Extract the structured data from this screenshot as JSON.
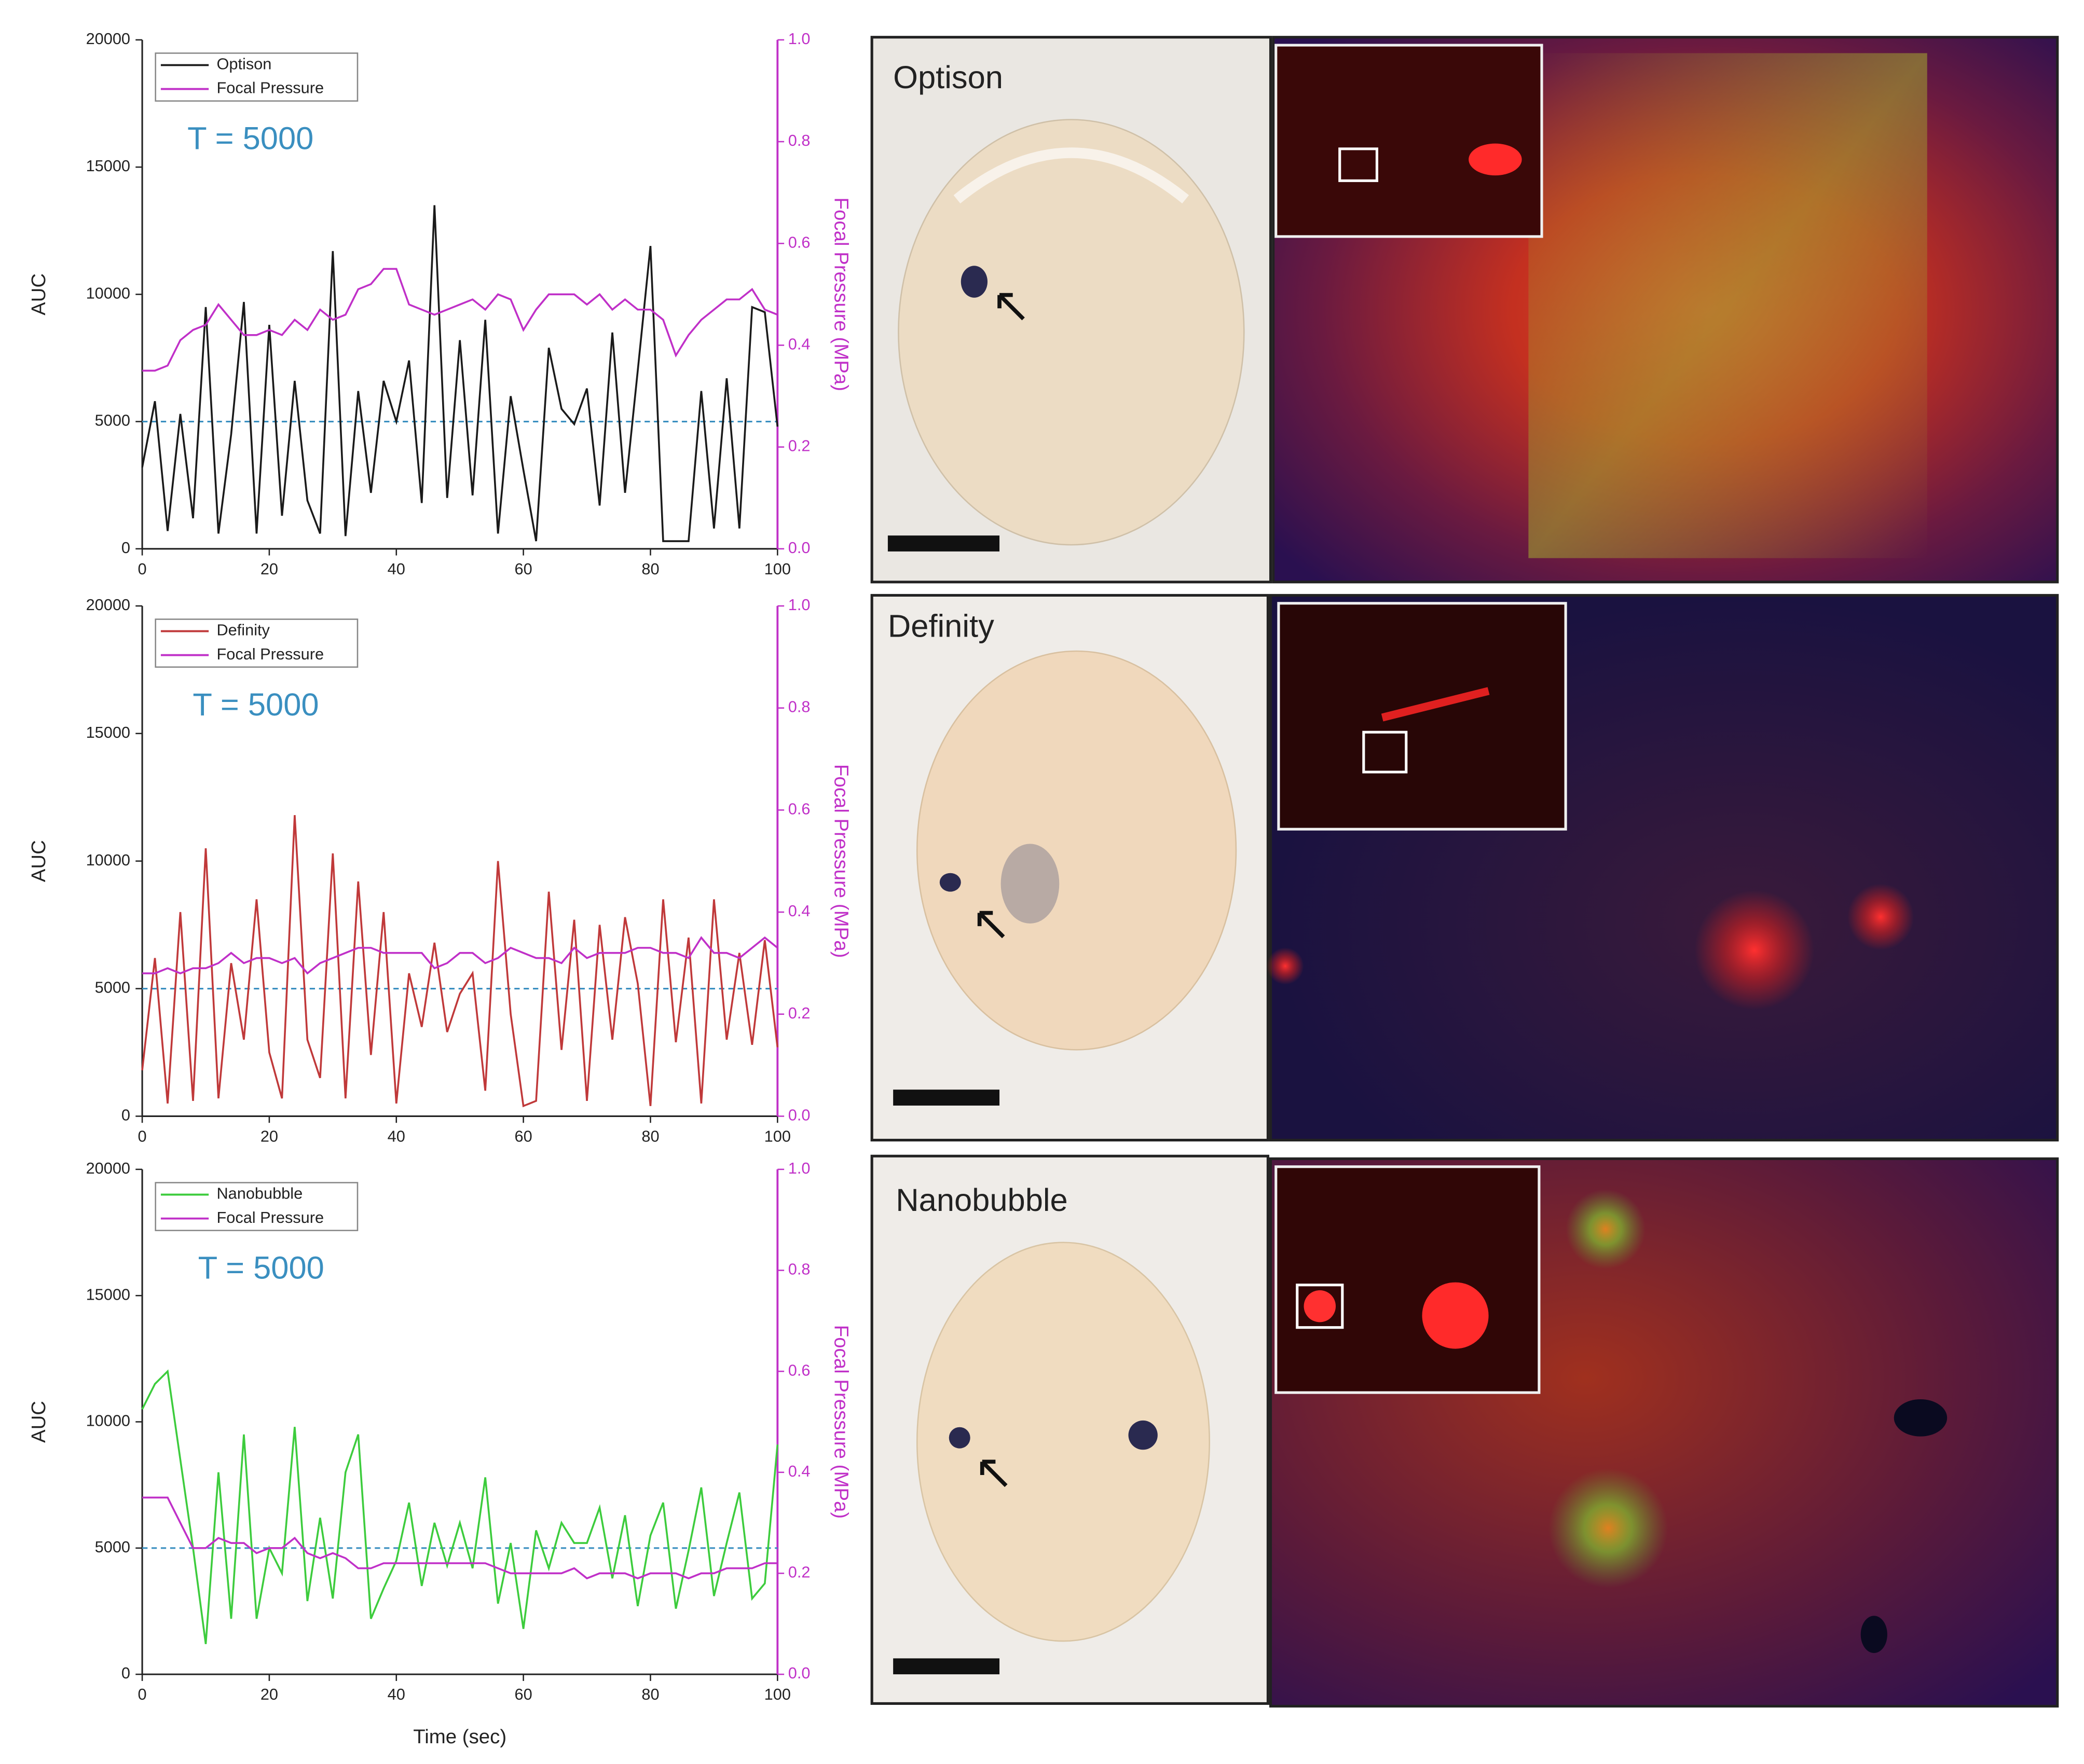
{
  "chart_data": [
    {
      "type": "line",
      "annotation": "T = 5000",
      "threshold_line": 5000,
      "threshold_color": "#3a8fc0",
      "ylabel": "AUC",
      "y2label": "Focal Pressure (MPa)",
      "x": [
        0,
        2,
        4,
        6,
        8,
        10,
        12,
        14,
        16,
        18,
        20,
        22,
        24,
        26,
        28,
        30,
        32,
        34,
        36,
        38,
        40,
        42,
        44,
        46,
        48,
        50,
        52,
        54,
        56,
        58,
        60,
        62,
        64,
        66,
        68,
        70,
        72,
        74,
        76,
        78,
        80,
        82,
        84,
        86,
        88,
        90,
        92,
        94,
        96,
        98,
        100
      ],
      "xlim": [
        0,
        100
      ],
      "xticks": [
        0,
        20,
        40,
        60,
        80,
        100
      ],
      "ylim": [
        0,
        20000
      ],
      "yticks": [
        0,
        5000,
        10000,
        15000,
        20000
      ],
      "y2lim": [
        0,
        1
      ],
      "y2ticks": [
        {
          "value": 0,
          "label": "0.0"
        },
        {
          "value": 0.2,
          "label": "0.2"
        },
        {
          "value": 0.4,
          "label": "0.4"
        },
        {
          "value": 0.6,
          "label": "0.6"
        },
        {
          "value": 0.8,
          "label": "0.8"
        },
        {
          "value": 1,
          "label": "1.0"
        }
      ],
      "series": [
        {
          "name": "Optison",
          "color": "#1a1a1a",
          "values": [
            3200,
            5800,
            700,
            5300,
            1200,
            9500,
            600,
            4500,
            9700,
            600,
            8800,
            1300,
            6600,
            1900,
            600,
            11700,
            500,
            6200,
            2200,
            6600,
            5000,
            7400,
            1800,
            13500,
            2000,
            8200,
            2100,
            9000,
            600,
            6000,
            3100,
            300,
            7900,
            5500,
            4900,
            6300,
            1700,
            8500,
            2200,
            7000,
            11900,
            300,
            300,
            300,
            6200,
            800,
            6700,
            800,
            9500,
            9300,
            4800
          ]
        },
        {
          "name": "Focal Pressure",
          "color": "#c030c8",
          "axis": "y2",
          "values": [
            0.35,
            0.35,
            0.36,
            0.41,
            0.43,
            0.44,
            0.48,
            0.45,
            0.42,
            0.42,
            0.43,
            0.42,
            0.45,
            0.43,
            0.47,
            0.45,
            0.46,
            0.51,
            0.52,
            0.55,
            0.55,
            0.48,
            0.47,
            0.46,
            0.47,
            0.48,
            0.49,
            0.47,
            0.5,
            0.49,
            0.43,
            0.47,
            0.5,
            0.5,
            0.5,
            0.48,
            0.5,
            0.47,
            0.49,
            0.47,
            0.47,
            0.45,
            0.38,
            0.42,
            0.45,
            0.47,
            0.49,
            0.49,
            0.51,
            0.47,
            0.46
          ]
        }
      ]
    },
    {
      "type": "line",
      "annotation": "T = 5000",
      "threshold_line": 5000,
      "threshold_color": "#3a8fc0",
      "ylabel": "AUC",
      "y2label": "Focal Pressure (MPa)",
      "x": [
        0,
        2,
        4,
        6,
        8,
        10,
        12,
        14,
        16,
        18,
        20,
        22,
        24,
        26,
        28,
        30,
        32,
        34,
        36,
        38,
        40,
        42,
        44,
        46,
        48,
        50,
        52,
        54,
        56,
        58,
        60,
        62,
        64,
        66,
        68,
        70,
        72,
        74,
        76,
        78,
        80,
        82,
        84,
        86,
        88,
        90,
        92,
        94,
        96,
        98,
        100
      ],
      "xlim": [
        0,
        100
      ],
      "xticks": [
        0,
        20,
        40,
        60,
        80,
        100
      ],
      "ylim": [
        0,
        20000
      ],
      "yticks": [
        0,
        5000,
        10000,
        15000,
        20000
      ],
      "y2lim": [
        0,
        1
      ],
      "y2ticks": [
        {
          "value": 0,
          "label": "0.0"
        },
        {
          "value": 0.2,
          "label": "0.2"
        },
        {
          "value": 0.4,
          "label": "0.4"
        },
        {
          "value": 0.6,
          "label": "0.6"
        },
        {
          "value": 0.8,
          "label": "0.8"
        },
        {
          "value": 1,
          "label": "1.0"
        }
      ],
      "series": [
        {
          "name": "Definity",
          "color": "#c0393a",
          "values": [
            1800,
            6200,
            500,
            8000,
            600,
            10500,
            700,
            6000,
            3000,
            8500,
            2500,
            700,
            11800,
            3000,
            1500,
            10300,
            700,
            9200,
            2400,
            8000,
            500,
            5600,
            3500,
            6800,
            3300,
            4800,
            5600,
            1000,
            10000,
            4000,
            400,
            600,
            8800,
            2600,
            7700,
            600,
            7500,
            3000,
            7800,
            5200,
            400,
            8500,
            2900,
            7000,
            500,
            8500,
            3000,
            6400,
            2800,
            6900,
            2700
          ]
        },
        {
          "name": "Focal Pressure",
          "color": "#c030c8",
          "axis": "y2",
          "values": [
            0.28,
            0.28,
            0.29,
            0.28,
            0.29,
            0.29,
            0.3,
            0.32,
            0.3,
            0.31,
            0.31,
            0.3,
            0.31,
            0.28,
            0.3,
            0.31,
            0.32,
            0.33,
            0.33,
            0.32,
            0.32,
            0.32,
            0.32,
            0.29,
            0.3,
            0.32,
            0.32,
            0.3,
            0.31,
            0.33,
            0.32,
            0.31,
            0.31,
            0.3,
            0.33,
            0.31,
            0.32,
            0.32,
            0.32,
            0.33,
            0.33,
            0.32,
            0.32,
            0.31,
            0.35,
            0.32,
            0.32,
            0.31,
            0.33,
            0.35,
            0.33
          ]
        }
      ]
    },
    {
      "type": "line",
      "annotation": "T = 5000",
      "threshold_line": 5000,
      "threshold_color": "#3a8fc0",
      "ylabel": "AUC",
      "y2label": "Focal Pressure (MPa)",
      "xlabel": "Time (sec)",
      "x": [
        0,
        2,
        4,
        6,
        8,
        10,
        12,
        14,
        16,
        18,
        20,
        22,
        24,
        26,
        28,
        30,
        32,
        34,
        36,
        38,
        40,
        42,
        44,
        46,
        48,
        50,
        52,
        54,
        56,
        58,
        60,
        62,
        64,
        66,
        68,
        70,
        72,
        74,
        76,
        78,
        80,
        82,
        84,
        86,
        88,
        90,
        92,
        94,
        96,
        98,
        100
      ],
      "xlim": [
        0,
        100
      ],
      "xticks": [
        0,
        20,
        40,
        60,
        80,
        100
      ],
      "ylim": [
        0,
        20000
      ],
      "yticks": [
        0,
        5000,
        10000,
        15000,
        20000
      ],
      "y2lim": [
        0,
        1
      ],
      "y2ticks": [
        {
          "value": 0,
          "label": "0.0"
        },
        {
          "value": 0.2,
          "label": "0.2"
        },
        {
          "value": 0.4,
          "label": "0.4"
        },
        {
          "value": 0.6,
          "label": "0.6"
        },
        {
          "value": 0.8,
          "label": "0.8"
        },
        {
          "value": 1,
          "label": "1.0"
        }
      ],
      "series": [
        {
          "name": "Nanobubble",
          "color": "#3dcc3d",
          "values": [
            10500,
            11500,
            12000,
            8500,
            5000,
            1200,
            8000,
            2200,
            9500,
            2200,
            5000,
            4000,
            9800,
            2900,
            6200,
            3000,
            8000,
            9500,
            2200,
            3400,
            4500,
            6800,
            3500,
            6000,
            4300,
            6000,
            4200,
            7800,
            2800,
            5200,
            1800,
            5700,
            4200,
            6000,
            5200,
            5200,
            6600,
            3800,
            6300,
            2700,
            5500,
            6800,
            2600,
            4900,
            7400,
            3100,
            5200,
            7200,
            3000,
            3600,
            9100
          ]
        },
        {
          "name": "Focal Pressure",
          "color": "#c030c8",
          "axis": "y2",
          "values": [
            0.35,
            0.35,
            0.35,
            0.3,
            0.25,
            0.25,
            0.27,
            0.26,
            0.26,
            0.24,
            0.25,
            0.25,
            0.27,
            0.24,
            0.23,
            0.24,
            0.23,
            0.21,
            0.21,
            0.22,
            0.22,
            0.22,
            0.22,
            0.22,
            0.22,
            0.22,
            0.22,
            0.22,
            0.21,
            0.2,
            0.2,
            0.2,
            0.2,
            0.2,
            0.21,
            0.19,
            0.2,
            0.2,
            0.2,
            0.19,
            0.2,
            0.2,
            0.2,
            0.19,
            0.2,
            0.2,
            0.21,
            0.21,
            0.21,
            0.22,
            0.22
          ]
        }
      ]
    }
  ],
  "panels": [
    {
      "label": "Optison"
    },
    {
      "label": "Definity"
    },
    {
      "label": "Nanobubble"
    }
  ]
}
